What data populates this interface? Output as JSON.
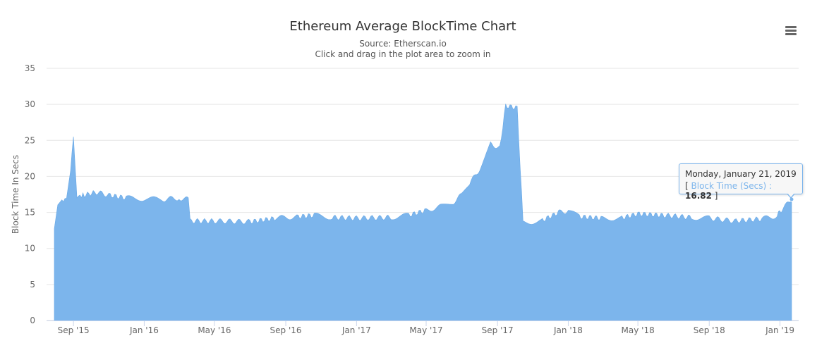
{
  "chart_data": {
    "type": "area",
    "title": "Ethereum Average BlockTime Chart",
    "subtitle": "Source: Etherscan.io",
    "subtitle2": "Click and drag in the plot area to zoom in",
    "ylabel": "Block Time In Secs",
    "xlabel": "",
    "ylim": [
      0,
      35
    ],
    "yticks": [
      0,
      5,
      10,
      15,
      20,
      25,
      30,
      35
    ],
    "xlim": [
      "2015-07-30",
      "2019-01-21"
    ],
    "xtick_labels": [
      {
        "label": "Sep '15",
        "date": "2015-09-01"
      },
      {
        "label": "Jan '16",
        "date": "2016-01-01"
      },
      {
        "label": "May '16",
        "date": "2016-05-01"
      },
      {
        "label": "Sep '16",
        "date": "2016-09-01"
      },
      {
        "label": "Jan '17",
        "date": "2017-01-01"
      },
      {
        "label": "May '17",
        "date": "2017-05-01"
      },
      {
        "label": "Sep '17",
        "date": "2017-09-01"
      },
      {
        "label": "Jan '18",
        "date": "2018-01-01"
      },
      {
        "label": "May '18",
        "date": "2018-05-01"
      },
      {
        "label": "Sep '18",
        "date": "2018-09-01"
      },
      {
        "label": "Jan '19",
        "date": "2019-01-01"
      }
    ],
    "grid": true,
    "series": [
      {
        "name": "Block Time (Secs)",
        "color": "#7cb5ec",
        "points": [
          [
            "2015-07-30",
            12.4
          ],
          [
            "2015-08-05",
            16.0
          ],
          [
            "2015-08-12",
            16.5
          ],
          [
            "2015-08-20",
            17.0
          ],
          [
            "2015-08-27",
            21.0
          ],
          [
            "2015-09-01",
            25.3
          ],
          [
            "2015-09-07",
            17.2
          ],
          [
            "2015-09-20",
            17.4
          ],
          [
            "2015-10-10",
            17.8
          ],
          [
            "2015-11-01",
            17.4
          ],
          [
            "2015-12-01",
            17.0
          ],
          [
            "2016-01-01",
            16.9
          ],
          [
            "2016-02-01",
            16.8
          ],
          [
            "2016-03-01",
            17.0
          ],
          [
            "2016-03-17",
            16.8
          ],
          [
            "2016-03-20",
            13.8
          ],
          [
            "2016-05-01",
            13.8
          ],
          [
            "2016-07-01",
            13.7
          ],
          [
            "2016-08-15",
            14.2
          ],
          [
            "2016-09-20",
            14.4
          ],
          [
            "2016-10-20",
            14.6
          ],
          [
            "2016-11-20",
            14.3
          ],
          [
            "2017-01-01",
            14.2
          ],
          [
            "2017-03-01",
            14.3
          ],
          [
            "2017-04-01",
            14.6
          ],
          [
            "2017-05-01",
            15.3
          ],
          [
            "2017-05-25",
            15.8
          ],
          [
            "2017-06-15",
            16.3
          ],
          [
            "2017-07-01",
            17.4
          ],
          [
            "2017-07-15",
            19.0
          ],
          [
            "2017-08-01",
            21.0
          ],
          [
            "2017-08-20",
            24.5
          ],
          [
            "2017-09-05",
            24.0
          ],
          [
            "2017-09-15",
            29.8
          ],
          [
            "2017-10-05",
            29.5
          ],
          [
            "2017-10-15",
            13.6
          ],
          [
            "2017-11-15",
            13.8
          ],
          [
            "2017-12-15",
            15.0
          ],
          [
            "2018-01-01",
            15.2
          ],
          [
            "2018-01-20",
            14.4
          ],
          [
            "2018-03-01",
            14.2
          ],
          [
            "2018-04-01",
            14.2
          ],
          [
            "2018-05-01",
            14.8
          ],
          [
            "2018-06-15",
            14.6
          ],
          [
            "2018-08-01",
            14.3
          ],
          [
            "2018-09-01",
            14.2
          ],
          [
            "2018-10-15",
            13.8
          ],
          [
            "2018-12-01",
            14.1
          ],
          [
            "2018-12-25",
            14.5
          ],
          [
            "2019-01-05",
            15.4
          ],
          [
            "2019-01-21",
            16.82
          ]
        ]
      }
    ],
    "tooltip": {
      "date": "Monday, January 21, 2019",
      "open_bracket": "[",
      "series_label": "Block Time (Secs) :",
      "value": "16.82",
      "close_bracket": "]"
    },
    "legend": "none"
  },
  "menu": {
    "icon": "hamburger-menu-icon"
  }
}
